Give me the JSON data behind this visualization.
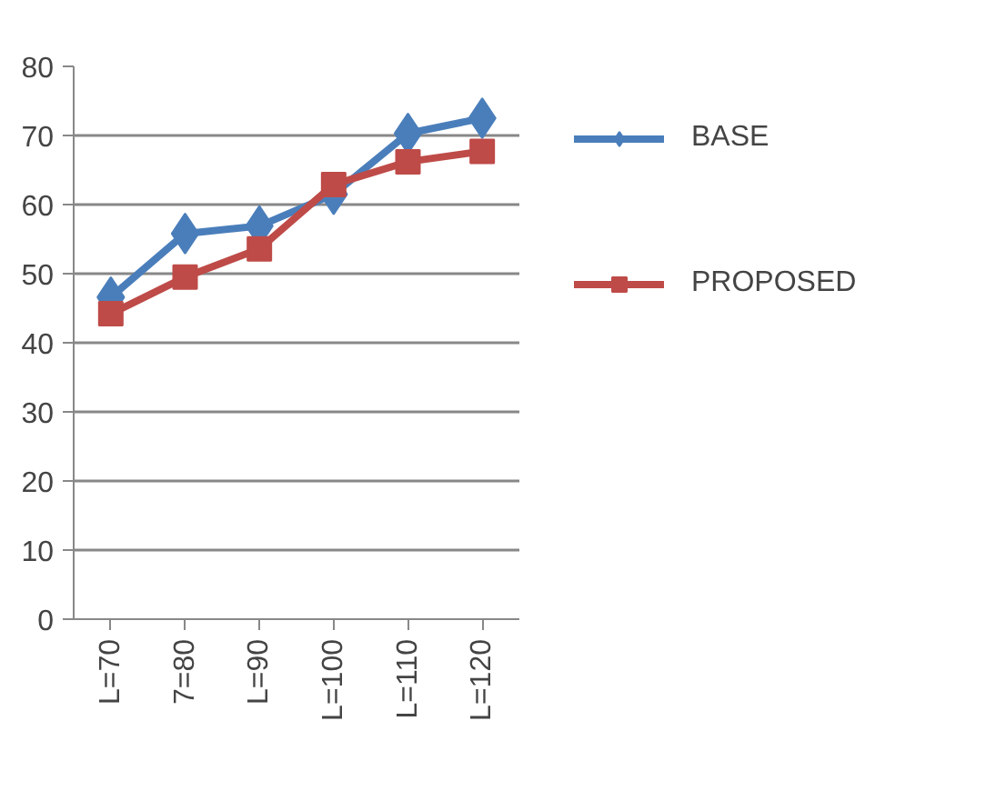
{
  "chart_data": {
    "type": "line",
    "categories": [
      "L=70",
      "7=80",
      "L=90",
      "L=100",
      "L=110",
      "L=120"
    ],
    "series": [
      {
        "name": "BASE",
        "color": "#4a7ebb",
        "marker": "diamond",
        "values": [
          46.6,
          55.8,
          56.9,
          61.5,
          70.3,
          72.5
        ]
      },
      {
        "name": "PROPOSED",
        "color": "#be4b48",
        "marker": "square",
        "values": [
          44.2,
          49.5,
          53.6,
          62.9,
          66.2,
          67.7
        ]
      }
    ],
    "ylim": [
      0,
      80
    ],
    "yticks": [
      0,
      10,
      20,
      30,
      40,
      50,
      60,
      70,
      80
    ],
    "grid": "y",
    "legend": "right"
  }
}
